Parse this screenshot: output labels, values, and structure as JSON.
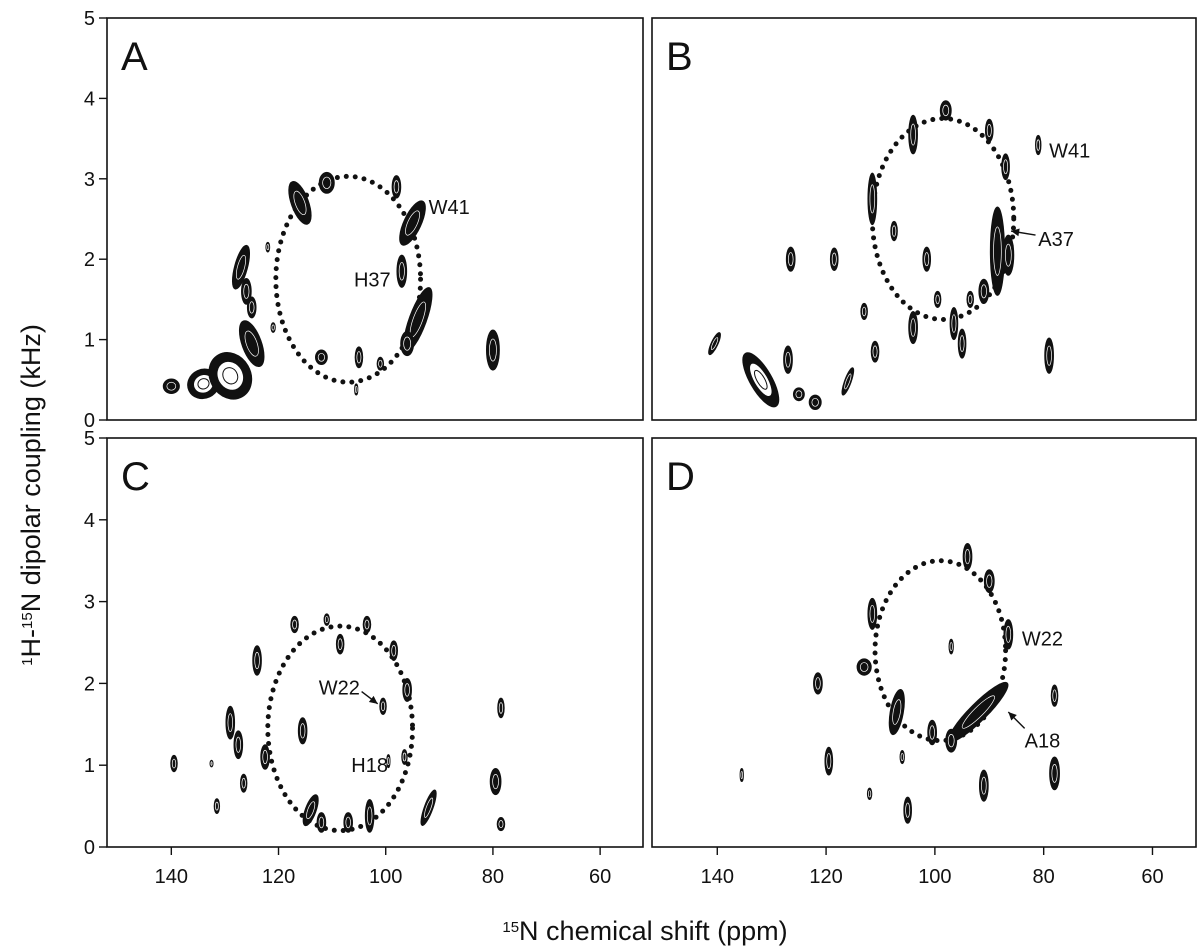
{
  "figure": {
    "ylabel_sup": "1",
    "ylabel_mid": "H-",
    "ylabel_sup2": "15",
    "ylabel_rest": "N dipolar coupling (kHz)",
    "xlabel_sup": "15",
    "xlabel_rest": "N chemical shift (ppm)"
  },
  "chart_data": [
    {
      "type": "scatter",
      "panel": "A",
      "xlim": [
        152,
        52
      ],
      "ylim": [
        0,
        5
      ],
      "yticks": [
        "0",
        "1",
        "2",
        "3",
        "4",
        "5"
      ],
      "xticks": [],
      "wheel": {
        "cx": 107,
        "cy": 1.75,
        "rx": 13.5,
        "ry": 1.28
      },
      "peaks": [
        {
          "x": 134,
          "y": 0.45,
          "rx": 3.0,
          "ry": 0.18,
          "rot": -25,
          "h": 1
        },
        {
          "x": 129,
          "y": 0.55,
          "rx": 3.8,
          "ry": 0.3,
          "rot": -30,
          "h": 1
        },
        {
          "x": 125,
          "y": 0.95,
          "rx": 1.8,
          "ry": 0.3,
          "rot": -20,
          "h": 0
        },
        {
          "x": 140,
          "y": 0.42,
          "rx": 1.5,
          "ry": 0.09,
          "rot": 0,
          "h": 0
        },
        {
          "x": 127,
          "y": 1.9,
          "rx": 1.2,
          "ry": 0.28,
          "rot": 15,
          "h": 0
        },
        {
          "x": 126,
          "y": 1.6,
          "rx": 0.9,
          "ry": 0.16,
          "rot": 0,
          "h": 0
        },
        {
          "x": 125,
          "y": 1.4,
          "rx": 0.8,
          "ry": 0.13,
          "rot": 0,
          "h": 0
        },
        {
          "x": 116,
          "y": 2.7,
          "rx": 1.6,
          "ry": 0.28,
          "rot": -20,
          "h": 0
        },
        {
          "x": 111,
          "y": 2.95,
          "rx": 1.4,
          "ry": 0.13,
          "rot": 0,
          "h": 0
        },
        {
          "x": 98,
          "y": 2.9,
          "rx": 0.8,
          "ry": 0.14,
          "rot": 0,
          "h": 0
        },
        {
          "x": 95,
          "y": 2.45,
          "rx": 1.6,
          "ry": 0.3,
          "rot": 25,
          "h": 0
        },
        {
          "x": 97,
          "y": 1.85,
          "rx": 0.9,
          "ry": 0.2,
          "rot": 0,
          "h": 0
        },
        {
          "x": 94,
          "y": 1.25,
          "rx": 1.6,
          "ry": 0.42,
          "rot": 20,
          "h": 0
        },
        {
          "x": 96,
          "y": 0.95,
          "rx": 1.2,
          "ry": 0.15,
          "rot": 0,
          "h": 0
        },
        {
          "x": 112,
          "y": 0.78,
          "rx": 1.1,
          "ry": 0.09,
          "rot": 0,
          "h": 0
        },
        {
          "x": 105,
          "y": 0.78,
          "rx": 0.7,
          "ry": 0.13,
          "rot": 0,
          "h": 0
        },
        {
          "x": 105.5,
          "y": 0.38,
          "rx": 0.3,
          "ry": 0.07,
          "rot": 0,
          "h": 0
        },
        {
          "x": 101,
          "y": 0.7,
          "rx": 0.6,
          "ry": 0.08,
          "rot": 0,
          "h": 0
        },
        {
          "x": 80,
          "y": 0.87,
          "rx": 1.2,
          "ry": 0.25,
          "rot": 0,
          "h": 0
        },
        {
          "x": 122,
          "y": 2.15,
          "rx": 0.35,
          "ry": 0.06,
          "rot": 0,
          "h": 0
        },
        {
          "x": 121,
          "y": 1.15,
          "rx": 0.4,
          "ry": 0.06,
          "rot": 0,
          "h": 0
        }
      ],
      "labels": [
        {
          "text": "W41",
          "x": 92,
          "y": 2.65,
          "anchor": "start"
        },
        {
          "text": "H37",
          "x": 102.5,
          "y": 1.75,
          "anchor": "middle"
        }
      ]
    },
    {
      "type": "scatter",
      "panel": "B",
      "xlim": [
        152,
        52
      ],
      "ylim": [
        0,
        5
      ],
      "yticks": [],
      "xticks": [],
      "wheel": {
        "cx": 98.5,
        "cy": 2.5,
        "rx": 13,
        "ry": 1.25
      },
      "peaks": [
        {
          "x": 98,
          "y": 3.85,
          "rx": 1.0,
          "ry": 0.12,
          "rot": 0,
          "h": 0
        },
        {
          "x": 104,
          "y": 3.55,
          "rx": 0.8,
          "ry": 0.24,
          "rot": 0,
          "h": 0
        },
        {
          "x": 90,
          "y": 3.6,
          "rx": 0.7,
          "ry": 0.14,
          "rot": 0,
          "h": 0
        },
        {
          "x": 81,
          "y": 3.42,
          "rx": 0.5,
          "ry": 0.12,
          "rot": 0,
          "h": 0
        },
        {
          "x": 87,
          "y": 3.15,
          "rx": 0.7,
          "ry": 0.16,
          "rot": 0,
          "h": 0
        },
        {
          "x": 111.5,
          "y": 2.75,
          "rx": 0.8,
          "ry": 0.32,
          "rot": 0,
          "h": 0
        },
        {
          "x": 107.5,
          "y": 2.35,
          "rx": 0.6,
          "ry": 0.12,
          "rot": 0,
          "h": 0
        },
        {
          "x": 88.5,
          "y": 2.1,
          "rx": 1.3,
          "ry": 0.55,
          "rot": 0,
          "h": 0
        },
        {
          "x": 86.5,
          "y": 2.05,
          "rx": 1.0,
          "ry": 0.25,
          "rot": 0,
          "h": 0
        },
        {
          "x": 101.5,
          "y": 2.0,
          "rx": 0.7,
          "ry": 0.15,
          "rot": 0,
          "h": 0
        },
        {
          "x": 126.5,
          "y": 2.0,
          "rx": 0.8,
          "ry": 0.15,
          "rot": 0,
          "h": 0
        },
        {
          "x": 118.5,
          "y": 2.0,
          "rx": 0.7,
          "ry": 0.14,
          "rot": 0,
          "h": 0
        },
        {
          "x": 91,
          "y": 1.6,
          "rx": 0.9,
          "ry": 0.15,
          "rot": 0,
          "h": 0
        },
        {
          "x": 93.5,
          "y": 1.5,
          "rx": 0.6,
          "ry": 0.1,
          "rot": 0,
          "h": 0
        },
        {
          "x": 99.5,
          "y": 1.5,
          "rx": 0.6,
          "ry": 0.1,
          "rot": 0,
          "h": 0
        },
        {
          "x": 113,
          "y": 1.35,
          "rx": 0.6,
          "ry": 0.1,
          "rot": 0,
          "h": 0
        },
        {
          "x": 104,
          "y": 1.15,
          "rx": 0.8,
          "ry": 0.2,
          "rot": 0,
          "h": 0
        },
        {
          "x": 96.5,
          "y": 1.2,
          "rx": 0.7,
          "ry": 0.2,
          "rot": 0,
          "h": 0
        },
        {
          "x": 95,
          "y": 0.95,
          "rx": 0.7,
          "ry": 0.18,
          "rot": 0,
          "h": 0
        },
        {
          "x": 111,
          "y": 0.85,
          "rx": 0.7,
          "ry": 0.13,
          "rot": 0,
          "h": 0
        },
        {
          "x": 140.5,
          "y": 0.95,
          "rx": 0.6,
          "ry": 0.15,
          "rot": 25,
          "h": 0
        },
        {
          "x": 132,
          "y": 0.5,
          "rx": 2.0,
          "ry": 0.38,
          "rot": -30,
          "h": 1
        },
        {
          "x": 127,
          "y": 0.75,
          "rx": 0.8,
          "ry": 0.17,
          "rot": 0,
          "h": 0
        },
        {
          "x": 125,
          "y": 0.32,
          "rx": 1.0,
          "ry": 0.08,
          "rot": 0,
          "h": 0
        },
        {
          "x": 122,
          "y": 0.22,
          "rx": 1.1,
          "ry": 0.09,
          "rot": 0,
          "h": 0
        },
        {
          "x": 116,
          "y": 0.48,
          "rx": 0.6,
          "ry": 0.18,
          "rot": 20,
          "h": 0
        },
        {
          "x": 79,
          "y": 0.8,
          "rx": 0.8,
          "ry": 0.22,
          "rot": 0,
          "h": 0
        }
      ],
      "labels": [
        {
          "text": "W41",
          "x": 79,
          "y": 3.35,
          "anchor": "start"
        },
        {
          "text": "A37",
          "x": 81,
          "y": 2.25,
          "anchor": "start"
        }
      ],
      "arrows": [
        {
          "from": [
            81.5,
            2.3
          ],
          "to": [
            86,
            2.35
          ]
        }
      ]
    },
    {
      "type": "scatter",
      "panel": "C",
      "xlim": [
        152,
        52
      ],
      "ylim": [
        0,
        5
      ],
      "yticks": [
        "0",
        "1",
        "2",
        "3",
        "4",
        "5"
      ],
      "xticks": [
        "140",
        "120",
        "100",
        "80",
        "60"
      ],
      "wheel": {
        "cx": 108.5,
        "cy": 1.45,
        "rx": 13.5,
        "ry": 1.25
      },
      "peaks": [
        {
          "x": 111,
          "y": 2.78,
          "rx": 0.5,
          "ry": 0.07,
          "rot": 0,
          "h": 0
        },
        {
          "x": 117,
          "y": 2.72,
          "rx": 0.7,
          "ry": 0.1,
          "rot": 0,
          "h": 0
        },
        {
          "x": 103.5,
          "y": 2.72,
          "rx": 0.7,
          "ry": 0.1,
          "rot": 0,
          "h": 0
        },
        {
          "x": 108.5,
          "y": 2.48,
          "rx": 0.7,
          "ry": 0.12,
          "rot": 0,
          "h": 0
        },
        {
          "x": 98.5,
          "y": 2.4,
          "rx": 0.7,
          "ry": 0.12,
          "rot": 0,
          "h": 0
        },
        {
          "x": 124,
          "y": 2.28,
          "rx": 0.8,
          "ry": 0.18,
          "rot": 0,
          "h": 0
        },
        {
          "x": 96,
          "y": 1.92,
          "rx": 0.8,
          "ry": 0.14,
          "rot": 0,
          "h": 0
        },
        {
          "x": 100.5,
          "y": 1.72,
          "rx": 0.6,
          "ry": 0.1,
          "rot": 0,
          "h": 0
        },
        {
          "x": 78.5,
          "y": 1.7,
          "rx": 0.6,
          "ry": 0.12,
          "rot": 0,
          "h": 0
        },
        {
          "x": 129,
          "y": 1.52,
          "rx": 0.8,
          "ry": 0.2,
          "rot": 0,
          "h": 0
        },
        {
          "x": 115.5,
          "y": 1.42,
          "rx": 0.8,
          "ry": 0.16,
          "rot": 0,
          "h": 0
        },
        {
          "x": 127.5,
          "y": 1.25,
          "rx": 0.8,
          "ry": 0.17,
          "rot": 0,
          "h": 0
        },
        {
          "x": 122.5,
          "y": 1.1,
          "rx": 0.8,
          "ry": 0.15,
          "rot": 0,
          "h": 0
        },
        {
          "x": 96.5,
          "y": 1.1,
          "rx": 0.5,
          "ry": 0.09,
          "rot": 0,
          "h": 0
        },
        {
          "x": 99.5,
          "y": 1.05,
          "rx": 0.3,
          "ry": 0.08,
          "rot": 0,
          "h": 0
        },
        {
          "x": 139.5,
          "y": 1.02,
          "rx": 0.6,
          "ry": 0.1,
          "rot": 0,
          "h": 0
        },
        {
          "x": 132.5,
          "y": 1.02,
          "rx": 0.15,
          "ry": 0.04,
          "rot": 0,
          "h": 0
        },
        {
          "x": 79.5,
          "y": 0.8,
          "rx": 1.0,
          "ry": 0.16,
          "rot": 0,
          "h": 0
        },
        {
          "x": 126.5,
          "y": 0.78,
          "rx": 0.6,
          "ry": 0.11,
          "rot": 0,
          "h": 0
        },
        {
          "x": 92,
          "y": 0.48,
          "rx": 0.8,
          "ry": 0.23,
          "rot": 20,
          "h": 0
        },
        {
          "x": 114,
          "y": 0.45,
          "rx": 1.0,
          "ry": 0.2,
          "rot": 20,
          "h": 0
        },
        {
          "x": 112,
          "y": 0.3,
          "rx": 0.8,
          "ry": 0.12,
          "rot": 0,
          "h": 0
        },
        {
          "x": 107,
          "y": 0.3,
          "rx": 0.8,
          "ry": 0.12,
          "rot": 0,
          "h": 0
        },
        {
          "x": 103,
          "y": 0.38,
          "rx": 0.8,
          "ry": 0.2,
          "rot": 0,
          "h": 0
        },
        {
          "x": 131.5,
          "y": 0.5,
          "rx": 0.5,
          "ry": 0.09,
          "rot": 0,
          "h": 0
        },
        {
          "x": 78.5,
          "y": 0.28,
          "rx": 0.7,
          "ry": 0.08,
          "rot": 0,
          "h": 0
        }
      ],
      "labels": [
        {
          "text": "W22",
          "x": 112.5,
          "y": 1.95,
          "anchor": "start"
        },
        {
          "text": "H18",
          "x": 103,
          "y": 1.0,
          "anchor": "middle"
        }
      ],
      "arrows": [
        {
          "from": [
            104.5,
            1.9
          ],
          "to": [
            101.5,
            1.75
          ]
        }
      ]
    },
    {
      "type": "scatter",
      "panel": "D",
      "xlim": [
        152,
        52
      ],
      "ylim": [
        0,
        5
      ],
      "yticks": [],
      "xticks": [
        "140",
        "120",
        "100",
        "80",
        "60"
      ],
      "wheel": {
        "cx": 99,
        "cy": 2.4,
        "rx": 12,
        "ry": 1.1
      },
      "peaks": [
        {
          "x": 94,
          "y": 3.55,
          "rx": 0.8,
          "ry": 0.16,
          "rot": 0,
          "h": 0
        },
        {
          "x": 90,
          "y": 3.25,
          "rx": 0.9,
          "ry": 0.14,
          "rot": 0,
          "h": 0
        },
        {
          "x": 111.5,
          "y": 2.85,
          "rx": 0.8,
          "ry": 0.19,
          "rot": 0,
          "h": 0
        },
        {
          "x": 86.5,
          "y": 2.6,
          "rx": 0.8,
          "ry": 0.18,
          "rot": 0,
          "h": 0
        },
        {
          "x": 97,
          "y": 2.45,
          "rx": 0.4,
          "ry": 0.09,
          "rot": 0,
          "h": 0
        },
        {
          "x": 113,
          "y": 2.2,
          "rx": 1.3,
          "ry": 0.1,
          "rot": 0,
          "h": 0
        },
        {
          "x": 121.5,
          "y": 2.0,
          "rx": 0.8,
          "ry": 0.13,
          "rot": 0,
          "h": 0
        },
        {
          "x": 78,
          "y": 1.85,
          "rx": 0.6,
          "ry": 0.13,
          "rot": 0,
          "h": 0
        },
        {
          "x": 107,
          "y": 1.65,
          "rx": 1.2,
          "ry": 0.28,
          "rot": 10,
          "h": 0
        },
        {
          "x": 92,
          "y": 1.65,
          "rx": 1.6,
          "ry": 0.5,
          "rot": 45,
          "h": 0
        },
        {
          "x": 100.5,
          "y": 1.4,
          "rx": 0.8,
          "ry": 0.15,
          "rot": 0,
          "h": 0
        },
        {
          "x": 97,
          "y": 1.3,
          "rx": 1.0,
          "ry": 0.14,
          "rot": 0,
          "h": 0
        },
        {
          "x": 106,
          "y": 1.1,
          "rx": 0.4,
          "ry": 0.08,
          "rot": 0,
          "h": 0
        },
        {
          "x": 119.5,
          "y": 1.05,
          "rx": 0.7,
          "ry": 0.17,
          "rot": 0,
          "h": 0
        },
        {
          "x": 135.5,
          "y": 0.88,
          "rx": 0.3,
          "ry": 0.08,
          "rot": 0,
          "h": 0
        },
        {
          "x": 78,
          "y": 0.9,
          "rx": 0.9,
          "ry": 0.2,
          "rot": 0,
          "h": 0
        },
        {
          "x": 91,
          "y": 0.75,
          "rx": 0.8,
          "ry": 0.19,
          "rot": 0,
          "h": 0
        },
        {
          "x": 112,
          "y": 0.65,
          "rx": 0.4,
          "ry": 0.07,
          "rot": 0,
          "h": 0
        },
        {
          "x": 105,
          "y": 0.45,
          "rx": 0.7,
          "ry": 0.16,
          "rot": 0,
          "h": 0
        }
      ],
      "labels": [
        {
          "text": "W22",
          "x": 84,
          "y": 2.55,
          "anchor": "start"
        },
        {
          "text": "A18",
          "x": 83.5,
          "y": 1.3,
          "anchor": "start"
        }
      ],
      "arrows": [
        {
          "from": [
            83.5,
            1.45
          ],
          "to": [
            86.5,
            1.65
          ]
        }
      ]
    }
  ]
}
